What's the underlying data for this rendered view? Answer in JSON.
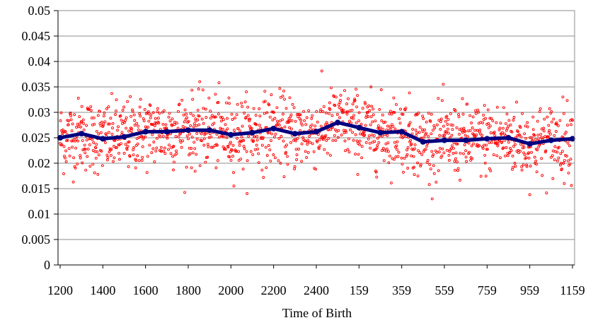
{
  "chart_data": {
    "type": "scatter",
    "title": "",
    "xlabel": "Time of Birth",
    "ylabel": "",
    "ylim": [
      0,
      0.05
    ],
    "y_ticks": [
      "0",
      "0.005",
      "0.01",
      "0.015",
      "0.02",
      "0.025",
      "0.03",
      "0.035",
      "0.04",
      "0.045",
      "0.05"
    ],
    "x_ticks": [
      "1200",
      "1400",
      "1600",
      "1800",
      "2000",
      "2200",
      "2400",
      "159",
      "359",
      "559",
      "759",
      "959",
      "1159"
    ],
    "grid": "horizontal",
    "legend": "none",
    "colors": {
      "scatter": "#ff0000",
      "trend": "#000080"
    },
    "series": [
      {
        "kind": "scatter",
        "approximate": true,
        "mean": 0.025,
        "spread": 0.0035,
        "n_points": 1440
      },
      {
        "kind": "line",
        "x": [
          "1200",
          "1300",
          "1400",
          "1500",
          "1600",
          "1700",
          "1800",
          "1900",
          "2000",
          "2100",
          "2200",
          "2300",
          "2400",
          "2459",
          "159",
          "259",
          "359",
          "459",
          "559",
          "659",
          "759",
          "859",
          "959",
          "1059",
          "1159"
        ],
        "values": [
          0.025,
          0.0258,
          0.0248,
          0.0252,
          0.0262,
          0.0262,
          0.0265,
          0.0265,
          0.0256,
          0.026,
          0.0268,
          0.0258,
          0.0262,
          0.028,
          0.027,
          0.026,
          0.0262,
          0.0242,
          0.0245,
          0.0245,
          0.0248,
          0.025,
          0.0238,
          0.0245,
          0.0248
        ]
      }
    ]
  }
}
